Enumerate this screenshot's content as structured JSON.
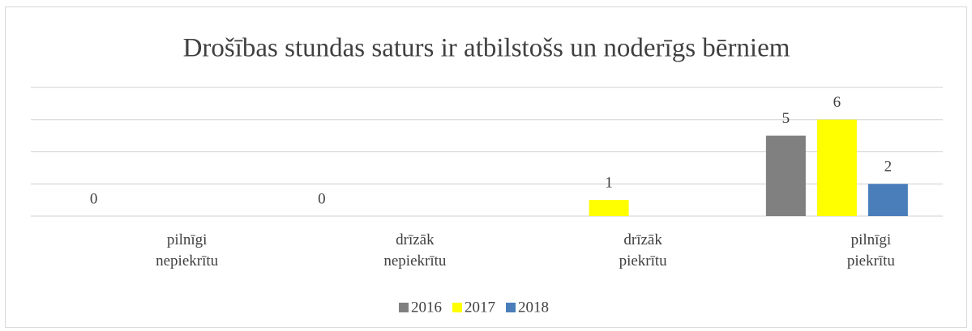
{
  "chart_data": {
    "type": "bar",
    "title": "Drošības stundas saturs ir atbilstošs un noderīgs bērniem",
    "categories": [
      [
        "pilnīgi",
        "nepiekrītu"
      ],
      [
        "drīzāk",
        "nepiekrītu"
      ],
      [
        "drīzāk",
        "piekrītu"
      ],
      [
        "pilnīgi",
        "piekrītu"
      ]
    ],
    "series": [
      {
        "name": "2016",
        "color": "#808080",
        "values": [
          0,
          0,
          null,
          5
        ]
      },
      {
        "name": "2017",
        "color": "#ffff00",
        "values": [
          null,
          null,
          1,
          6
        ]
      },
      {
        "name": "2018",
        "color": "#4a7ebb",
        "values": [
          null,
          null,
          null,
          2
        ]
      }
    ],
    "ylim": [
      0,
      8
    ],
    "yticks": [
      0,
      2,
      4,
      6,
      8
    ],
    "grid": true,
    "legend": "bottom"
  }
}
